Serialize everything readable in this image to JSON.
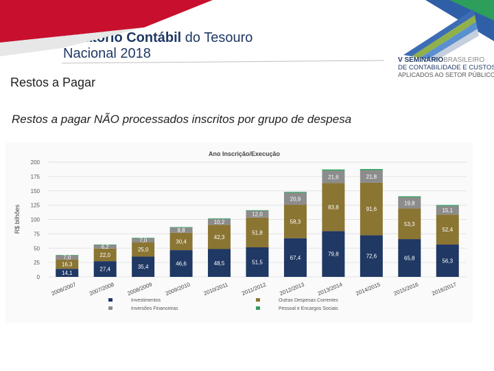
{
  "header": {
    "title_bold": "Relatório Contábil",
    "title_rest": " do Tesouro",
    "title_line2": "Nacional 2018"
  },
  "section_title": "Restos a Pagar",
  "subtitle": "Restos a pagar NÃO processados inscritos por grupo de despesa",
  "logo": {
    "line1a": "V SEMINÁRIO",
    "line1b": "BRASILEIRO",
    "line2": "DE CONTABILIDADE E CUSTOS",
    "line3": "APLICADOS AO SETOR PÚBLICO"
  },
  "colors": {
    "investimentos": "#1f3864",
    "outras": "#8b7533",
    "inversoes": "#8c8c8c",
    "pessoal": "#2e9e5b",
    "brand_red": "#c8102e"
  },
  "chart_data": {
    "type": "bar",
    "stacked": true,
    "title": "Ano Inscrição/Execução",
    "ylabel": "R$ bilhões",
    "ylim": [
      0,
      200
    ],
    "yticks": [
      "0",
      "25",
      "50",
      "75",
      "100",
      "125",
      "150",
      "175",
      "200"
    ],
    "categories": [
      "2006/2007",
      "2007/2008",
      "2008/2009",
      "2009/2010",
      "2010/2011",
      "2011/2012",
      "2012/2013",
      "2013/2014",
      "2014/2015",
      "2015/2016",
      "2016/2017"
    ],
    "series": [
      {
        "name": "Investimentos",
        "color": "#1f3864",
        "values": [
          14.1,
          27.4,
          35.4,
          46.6,
          48.5,
          51.5,
          67.4,
          79.8,
          72.6,
          65.8,
          56.3
        ],
        "labels": [
          "14,1",
          "27,4",
          "35,4",
          "46,6",
          "48,5",
          "51,5",
          "67,4",
          "79,8",
          "72,6",
          "65,8",
          "56,3"
        ]
      },
      {
        "name": "Outras Despesas Correntes",
        "color": "#8b7533",
        "values": [
          16.3,
          22.0,
          25.0,
          30.4,
          42.3,
          51.8,
          58.3,
          83.8,
          91.6,
          53.3,
          52.4
        ],
        "labels": [
          "16,3",
          "22,0",
          "25,0",
          "30,4",
          "42,3",
          "51,8",
          "58,3",
          "83,8",
          "91,6",
          "53,3",
          "52,4"
        ]
      },
      {
        "name": "Inversões Financeiras",
        "color": "#8c8c8c",
        "values": [
          7.0,
          6.2,
          7.0,
          8.8,
          10.2,
          12.0,
          20.9,
          21.6,
          21.8,
          19.8,
          15.1
        ],
        "labels": [
          "7,0",
          "6,2",
          "7,0",
          "8,8",
          "10,2",
          "12,0",
          "20,9",
          "21,6",
          "21,8",
          "19,8",
          "15,1"
        ]
      },
      {
        "name": "Pessoal e Encargos Sociais",
        "color": "#2e9e5b",
        "values": [
          0.8,
          0.8,
          0.8,
          1.0,
          1.0,
          1.0,
          1.5,
          2.0,
          2.0,
          1.5,
          1.5
        ],
        "labels": [
          "",
          "",
          "",
          "",
          "",
          "",
          "",
          "",
          "",
          "",
          ""
        ]
      }
    ],
    "legend": [
      "Investimentos",
      "Inversões Financeiras",
      "Outras Despesas Correntes",
      "Pessoal e Encargos Sociais"
    ],
    "legend_position": "bottom"
  }
}
